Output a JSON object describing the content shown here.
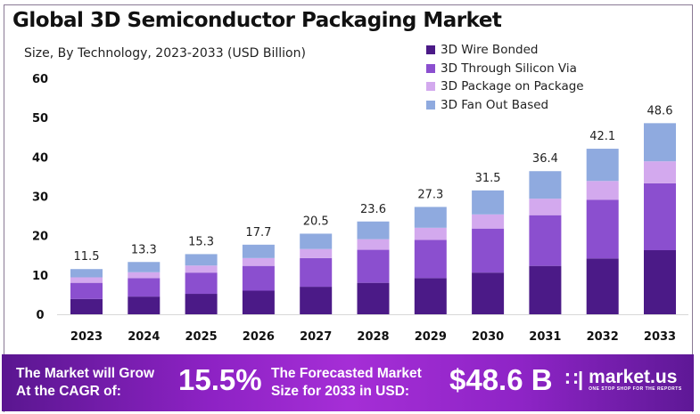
{
  "chart_data": {
    "type": "bar",
    "stacked": true,
    "title": "Global 3D Semiconductor Packaging Market",
    "subtitle": "Size, By Technology, 2023-2033 (USD Billion)",
    "categories": [
      "2023",
      "2024",
      "2025",
      "2026",
      "2027",
      "2028",
      "2029",
      "2030",
      "2031",
      "2032",
      "2033"
    ],
    "totals": [
      "11.5",
      "13.3",
      "15.3",
      "17.7",
      "20.5",
      "23.6",
      "27.3",
      "31.5",
      "36.4",
      "42.1",
      "48.6"
    ],
    "series": [
      {
        "name": "3D Wire Bonded",
        "color": "#4b1a87",
        "values": [
          3.9,
          4.5,
          5.2,
          6.0,
          7.0,
          8.0,
          9.2,
          10.6,
          12.3,
          14.2,
          16.3
        ]
      },
      {
        "name": "3D Through Silicon Via",
        "color": "#8b4fcf",
        "values": [
          4.1,
          4.7,
          5.4,
          6.3,
          7.3,
          8.4,
          9.7,
          11.2,
          12.9,
          14.9,
          17.0
        ]
      },
      {
        "name": "3D Package on Package",
        "color": "#d3a9ee",
        "values": [
          1.4,
          1.5,
          1.8,
          2.0,
          2.3,
          2.7,
          3.1,
          3.6,
          4.2,
          4.8,
          5.6
        ]
      },
      {
        "name": "3D Fan Out Based",
        "color": "#8faadf",
        "values": [
          2.1,
          2.6,
          2.9,
          3.4,
          3.9,
          4.5,
          5.3,
          6.1,
          7.0,
          8.2,
          9.7
        ]
      }
    ],
    "yticks": [
      "0",
      "10",
      "20",
      "30",
      "40",
      "50",
      "60"
    ],
    "ylim": [
      0,
      60
    ],
    "grid": false,
    "legend_position": "top-right"
  },
  "banner": {
    "cagr_label_1": "The Market will Grow",
    "cagr_label_2": "At the CAGR of:",
    "cagr_value": "15.5%",
    "forecast_label_1": "The Forecasted Market",
    "forecast_label_2": "Size for 2033 in USD:",
    "forecast_value": "$48.6 B",
    "logo_name": "market.us",
    "logo_tagline": "ONE STOP SHOP FOR THE REPORTS"
  }
}
